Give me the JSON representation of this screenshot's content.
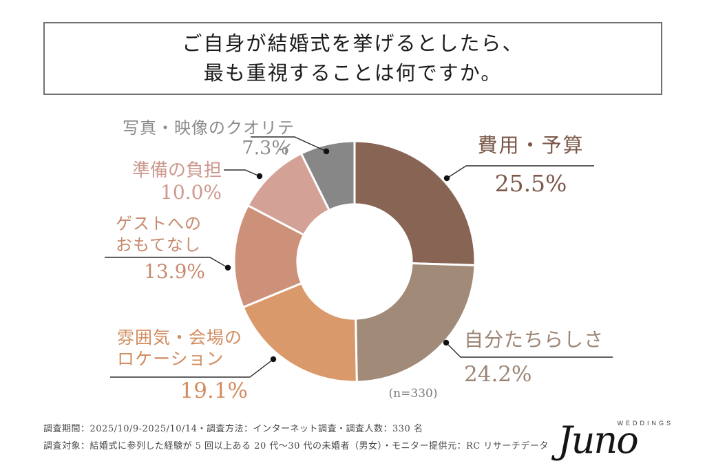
{
  "title": {
    "line1": "ご自身が結婚式を挙げるとしたら、",
    "line2": "最も重視することは何ですか。"
  },
  "chart_data": {
    "type": "pie",
    "subtype": "donut",
    "title": "ご自身が結婚式を挙げるとしたら、最も重視することは何ですか。",
    "sample_label": "(n=330)",
    "sample_size": 330,
    "start_angle_deg": 0,
    "clockwise": true,
    "inner_radius_ratio": 0.475,
    "segments": [
      {
        "label": "費用・予算",
        "value": 25.5,
        "display": "25.5%",
        "color": "#876454",
        "label_color": "#7b584a"
      },
      {
        "label": "自分たちらしさ",
        "value": 24.2,
        "display": "24.2%",
        "color": "#a18a77",
        "label_color": "#9c8473"
      },
      {
        "label": "雰囲気・会場のロケーション",
        "value": 19.1,
        "display": "19.1%",
        "color": "#d9996b",
        "label_color": "#d18c5f"
      },
      {
        "label": "ゲストへのおもてなし",
        "value": 13.9,
        "display": "13.9%",
        "color": "#cd917a",
        "label_color": "#c78a6e"
      },
      {
        "label": "準備の負担",
        "value": 10.0,
        "display": "10.0%",
        "color": "#d3a196",
        "label_color": "#cd998e"
      },
      {
        "label": "写真・映像のクオリティ",
        "value": 7.3,
        "display": "7.3%",
        "color": "#878787",
        "label_color": "#8c8c8c"
      }
    ]
  },
  "callouts": {
    "photo": {
      "line1": "写真・映像のクオリティ",
      "pct": "7.3%"
    },
    "prep": {
      "line1": "準備の負担",
      "pct": "10.0%"
    },
    "guest": {
      "line1": "ゲストへの",
      "line2": "おもてなし",
      "pct": "13.9%"
    },
    "atmo": {
      "line1": "雰囲気・会場の",
      "line2": "ロケーション",
      "pct": "19.1%"
    },
    "cost": {
      "line1": "費用・予算",
      "pct": "25.5%"
    },
    "self": {
      "line1": "自分たちらしさ",
      "pct": "24.2%"
    }
  },
  "sample_note": "(n=330)",
  "footer": {
    "line1": "調査期間：2025/10/9-2025/10/14・調査方法：インターネット調査・調査人数：330 名",
    "line2": "調査対象：結婚式に参列した経験が 5 回以上ある 20 代～30 代の未婚者（男女）・モニター提供元：RC リサーチデータ"
  },
  "logo": {
    "name": "Juno",
    "sub": "WEDDINGS"
  },
  "colors": {
    "leader_line": "#2b2b2b",
    "title_border": "#6f6f6f",
    "background": "#ffffff"
  }
}
